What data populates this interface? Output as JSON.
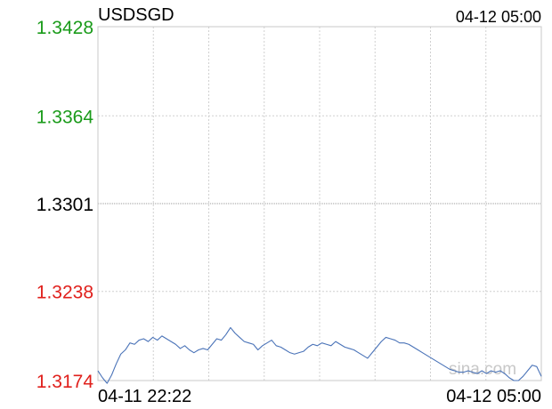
{
  "header": {
    "symbol": "USDSGD",
    "timestamp": "04-12 05:00"
  },
  "watermark": "sina.com",
  "colors": {
    "up": "#1a9b1a",
    "down": "#e0201c",
    "neutral": "#000000",
    "line": "#4a73b8",
    "grid": "#d0d0d0",
    "baseline": "#999999",
    "frame": "#c8c8c8"
  },
  "chart_data": {
    "type": "line",
    "ylim": [
      1.3174,
      1.3428
    ],
    "reference": 1.3301,
    "grid": true,
    "yticks": [
      {
        "value": 1.3428,
        "label": "1.3428",
        "tone": "up"
      },
      {
        "value": 1.3364,
        "label": "1.3364",
        "tone": "up"
      },
      {
        "value": 1.3301,
        "label": "1.3301",
        "tone": "neutral"
      },
      {
        "value": 1.3238,
        "label": "1.3238",
        "tone": "down"
      },
      {
        "value": 1.3174,
        "label": "1.3174",
        "tone": "down"
      }
    ],
    "xlabels": [
      "04-11 22:22",
      "04-12 05:00"
    ],
    "series": [
      {
        "values": [
          1.3181,
          1.3176,
          1.3172,
          1.3178,
          1.3186,
          1.3193,
          1.3196,
          1.3201,
          1.32,
          1.3203,
          1.3204,
          1.3202,
          1.3205,
          1.3203,
          1.3206,
          1.3204,
          1.3202,
          1.32,
          1.3197,
          1.3199,
          1.3196,
          1.3194,
          1.3196,
          1.3197,
          1.3196,
          1.32,
          1.3204,
          1.3203,
          1.3207,
          1.3212,
          1.3208,
          1.3205,
          1.3202,
          1.3201,
          1.32,
          1.3196,
          1.3199,
          1.3201,
          1.3203,
          1.3199,
          1.3198,
          1.3196,
          1.3194,
          1.3193,
          1.3194,
          1.3195,
          1.3198,
          1.32,
          1.3199,
          1.3201,
          1.32,
          1.3199,
          1.3202,
          1.32,
          1.3198,
          1.3197,
          1.3196,
          1.3194,
          1.3192,
          1.319,
          1.3194,
          1.3198,
          1.3202,
          1.3205,
          1.3204,
          1.3203,
          1.3201,
          1.3201,
          1.32,
          1.3198,
          1.3196,
          1.3194,
          1.3192,
          1.319,
          1.3188,
          1.3186,
          1.3184,
          1.3182,
          1.3181,
          1.318,
          1.318,
          1.3181,
          1.318,
          1.3179,
          1.3181,
          1.3179,
          1.3181,
          1.318,
          1.3181,
          1.3179,
          1.3176,
          1.3174,
          1.3174,
          1.3177,
          1.3181,
          1.3185,
          1.3184,
          1.3177
        ]
      }
    ]
  }
}
